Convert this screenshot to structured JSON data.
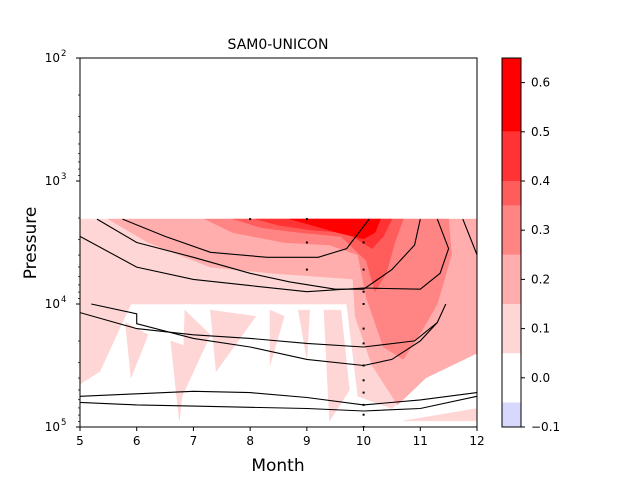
{
  "chart_data": {
    "type": "contour",
    "title": "SAM0-UNICON",
    "xlabel": "Month",
    "ylabel": "Pressure",
    "xlim": [
      5,
      12
    ],
    "ylim_log10": [
      5,
      2
    ],
    "y_scale": "log",
    "y_inverted": true,
    "x_ticks": [
      "5",
      "6",
      "7",
      "8",
      "9",
      "10",
      "11",
      "12"
    ],
    "y_ticks": [
      {
        "base": "10",
        "exp": "2",
        "value": 100
      },
      {
        "base": "10",
        "exp": "3",
        "value": 1000
      },
      {
        "base": "10",
        "exp": "4",
        "value": 10000
      },
      {
        "base": "10",
        "exp": "5",
        "value": 100000
      }
    ],
    "colorbar": {
      "range": [
        -0.1,
        0.65
      ],
      "ticks": [
        "−0.1",
        "0.0",
        "0.1",
        "0.2",
        "0.3",
        "0.4",
        "0.5",
        "0.6"
      ],
      "tick_values": [
        -0.1,
        0.0,
        0.1,
        0.2,
        0.3,
        0.4,
        0.5,
        0.6
      ],
      "levels": [
        {
          "from": -0.1,
          "to": -0.05,
          "color": "#d8d8ff"
        },
        {
          "from": -0.05,
          "to": 0.05,
          "color": "#ffffff"
        },
        {
          "from": 0.05,
          "to": 0.15,
          "color": "#ffd6d6"
        },
        {
          "from": 0.15,
          "to": 0.25,
          "color": "#ffadad"
        },
        {
          "from": 0.25,
          "to": 0.35,
          "color": "#ff8585"
        },
        {
          "from": 0.35,
          "to": 0.4,
          "color": "#ff5c5c"
        },
        {
          "from": 0.4,
          "to": 0.5,
          "color": "#ff3333"
        },
        {
          "from": 0.5,
          "to": 0.65,
          "color": "#ff0000"
        }
      ]
    },
    "contour_regions": [
      {
        "level": 0.1,
        "color": "#ffd6d6",
        "points": [
          [
            5,
            3.31
          ],
          [
            12,
            3.31
          ],
          [
            12,
            4.0
          ],
          [
            10.3,
            4.0
          ],
          [
            5,
            4.0
          ]
        ]
      },
      {
        "level": 0.1,
        "color": "#ffd6d6",
        "points": [
          [
            5,
            4.0
          ],
          [
            5.9,
            4.0
          ],
          [
            5.35,
            4.55
          ],
          [
            5,
            4.65
          ]
        ]
      },
      {
        "level": 0.1,
        "color": "#ffd6d6",
        "points": [
          [
            5.8,
            4.15
          ],
          [
            6.2,
            4.25
          ],
          [
            5.9,
            4.6
          ]
        ]
      },
      {
        "level": 0.1,
        "color": "#ffd6d6",
        "points": [
          [
            6.85,
            4.05
          ],
          [
            7.3,
            4.25
          ],
          [
            6.8,
            4.75
          ]
        ]
      },
      {
        "level": 0.1,
        "color": "#ffd6d6",
        "points": [
          [
            6.6,
            4.3
          ],
          [
            6.9,
            4.35
          ],
          [
            6.75,
            4.95
          ]
        ]
      },
      {
        "level": 0.1,
        "color": "#ffd6d6",
        "points": [
          [
            7.3,
            4.05
          ],
          [
            8.1,
            4.1
          ],
          [
            7.4,
            4.55
          ]
        ]
      },
      {
        "level": 0.1,
        "color": "#ffd6d6",
        "points": [
          [
            8.35,
            4.05
          ],
          [
            8.6,
            4.1
          ],
          [
            8.35,
            4.5
          ]
        ]
      },
      {
        "level": 0.1,
        "color": "#ffd6d6",
        "points": [
          [
            8.85,
            4.05
          ],
          [
            9.05,
            4.05
          ],
          [
            9.0,
            4.45
          ]
        ]
      },
      {
        "level": 0.1,
        "color": "#ffd6d6",
        "points": [
          [
            9.3,
            4.05
          ],
          [
            9.6,
            4.05
          ],
          [
            9.75,
            4.7
          ],
          [
            9.4,
            4.95
          ]
        ]
      },
      {
        "level": 0.1,
        "color": "#ffd6d6",
        "points": [
          [
            9.7,
            4.0
          ],
          [
            12,
            4.0
          ],
          [
            12,
            4.4
          ],
          [
            11.2,
            4.55
          ],
          [
            10.5,
            4.85
          ],
          [
            9.9,
            4.75
          ]
        ]
      },
      {
        "level": 0.1,
        "color": "#ffd6d6",
        "points": [
          [
            10.7,
            4.95
          ],
          [
            12,
            4.85
          ],
          [
            12,
            4.95
          ],
          [
            11.3,
            4.95
          ]
        ]
      },
      {
        "level": 0.2,
        "color": "#ffadad",
        "points": [
          [
            5.5,
            3.31
          ],
          [
            12,
            3.31
          ],
          [
            12,
            3.85
          ],
          [
            10.5,
            3.82
          ],
          [
            8.4,
            3.75
          ],
          [
            7.3,
            3.7
          ],
          [
            6.2,
            3.5
          ]
        ]
      },
      {
        "level": 0.2,
        "color": "#ffadad",
        "points": [
          [
            9.8,
            3.7
          ],
          [
            12,
            3.7
          ],
          [
            12,
            4.4
          ],
          [
            11.1,
            4.6
          ],
          [
            10.6,
            4.82
          ],
          [
            10.15,
            4.5
          ],
          [
            9.85,
            4.1
          ]
        ]
      },
      {
        "level": 0.3,
        "color": "#ff8585",
        "points": [
          [
            7.2,
            3.31
          ],
          [
            11.5,
            3.31
          ],
          [
            11.55,
            3.6
          ],
          [
            11.3,
            4.0
          ],
          [
            11.05,
            4.2
          ],
          [
            10.7,
            4.45
          ],
          [
            10.35,
            4.35
          ],
          [
            10.05,
            3.95
          ],
          [
            9.9,
            3.6
          ],
          [
            9.4,
            3.52
          ],
          [
            8.6,
            3.5
          ],
          [
            7.7,
            3.42
          ]
        ]
      },
      {
        "level": 0.4,
        "color": "#ff5c5c",
        "points": [
          [
            7.7,
            3.31
          ],
          [
            10.7,
            3.31
          ],
          [
            10.55,
            3.5
          ],
          [
            10.4,
            3.75
          ],
          [
            10.2,
            3.9
          ],
          [
            10.05,
            3.65
          ],
          [
            9.6,
            3.45
          ],
          [
            8.9,
            3.42
          ],
          [
            8.2,
            3.38
          ]
        ]
      },
      {
        "level": 0.5,
        "color": "#ff3333",
        "points": [
          [
            8.1,
            3.31
          ],
          [
            10.5,
            3.31
          ],
          [
            10.35,
            3.45
          ],
          [
            10.15,
            3.55
          ],
          [
            9.7,
            3.42
          ],
          [
            9.1,
            3.4
          ],
          [
            8.5,
            3.36
          ]
        ]
      },
      {
        "level": 0.6,
        "color": "#ff0000",
        "points": [
          [
            8.7,
            3.31
          ],
          [
            10.3,
            3.31
          ],
          [
            10.2,
            3.42
          ],
          [
            10.0,
            3.47
          ],
          [
            9.55,
            3.42
          ],
          [
            9.1,
            3.36
          ]
        ]
      }
    ],
    "contour_lines": [
      [
        [
          5.3,
          3.31
        ],
        [
          6.0,
          3.5
        ],
        [
          7.0,
          3.62
        ],
        [
          8.0,
          3.75
        ],
        [
          8.7,
          3.82
        ],
        [
          9.5,
          3.88
        ],
        [
          10.0,
          3.88
        ],
        [
          10.5,
          3.72
        ],
        [
          10.9,
          3.52
        ],
        [
          11.0,
          3.31
        ]
      ],
      [
        [
          5,
          3.45
        ],
        [
          6.0,
          3.7
        ],
        [
          7.0,
          3.8
        ],
        [
          8.0,
          3.85
        ],
        [
          9.0,
          3.9
        ],
        [
          10.0,
          3.87
        ],
        [
          11.0,
          3.88
        ],
        [
          11.35,
          3.75
        ],
        [
          11.5,
          3.55
        ],
        [
          11.3,
          3.31
        ]
      ],
      [
        [
          5.75,
          3.31
        ],
        [
          6.5,
          3.45
        ],
        [
          7.3,
          3.58
        ],
        [
          8.3,
          3.62
        ],
        [
          9.2,
          3.62
        ],
        [
          9.7,
          3.55
        ],
        [
          10.1,
          3.31
        ]
      ],
      [
        [
          11.75,
          3.31
        ],
        [
          12,
          3.6
        ]
      ],
      [
        [
          5,
          4.07
        ],
        [
          6.0,
          4.2
        ],
        [
          7.0,
          4.25
        ],
        [
          8.0,
          4.28
        ],
        [
          9.0,
          4.32
        ],
        [
          10.0,
          4.35
        ],
        [
          10.9,
          4.3
        ],
        [
          11.3,
          4.15
        ],
        [
          11.45,
          4.0
        ]
      ],
      [
        [
          5.2,
          4.0
        ],
        [
          6.0,
          4.08
        ],
        [
          6.0,
          4.16
        ],
        [
          7.0,
          4.28
        ],
        [
          8.0,
          4.35
        ],
        [
          9.0,
          4.45
        ],
        [
          10.0,
          4.5
        ],
        [
          10.5,
          4.45
        ],
        [
          11.0,
          4.3
        ],
        [
          11.3,
          4.15
        ]
      ],
      [
        [
          5,
          4.75
        ],
        [
          6.0,
          4.73
        ],
        [
          7.0,
          4.71
        ],
        [
          8.0,
          4.72
        ],
        [
          9.0,
          4.76
        ],
        [
          10.0,
          4.82
        ],
        [
          11.0,
          4.78
        ],
        [
          12,
          4.72
        ]
      ],
      [
        [
          5,
          4.8
        ],
        [
          6.0,
          4.82
        ],
        [
          7.0,
          4.83
        ],
        [
          8.0,
          4.84
        ],
        [
          9.0,
          4.85
        ],
        [
          10.0,
          4.87
        ],
        [
          11.0,
          4.85
        ],
        [
          12,
          4.75
        ]
      ]
    ],
    "stipple_points": [
      [
        8,
        3.31
      ],
      [
        9,
        3.31
      ],
      [
        9,
        3.5
      ],
      [
        9,
        3.72
      ],
      [
        10,
        3.5
      ],
      [
        10,
        3.72
      ],
      [
        10,
        3.9
      ],
      [
        10,
        4.0
      ],
      [
        10,
        4.2
      ],
      [
        10,
        4.32
      ],
      [
        10,
        4.5
      ],
      [
        10,
        4.62
      ],
      [
        10,
        4.72
      ],
      [
        10,
        4.82
      ],
      [
        10,
        4.9
      ],
      [
        10,
        5.0
      ]
    ]
  }
}
